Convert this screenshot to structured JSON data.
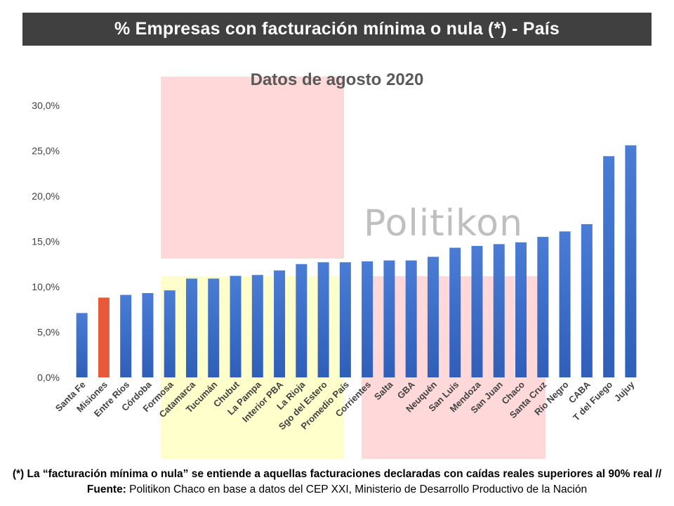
{
  "header": {
    "title": "% Empresas con facturación mínima o nula (*) - País"
  },
  "watermark": "Politikon",
  "footnote": {
    "part1_bold": "(*) La “facturación mínima o nula” se entiende a aquellas facturaciones declaradas con caídas reales superiores al 90% real // Fuente:",
    "part2": " Politikon Chaco en base a datos del CEP XXI, Ministerio de Desarrollo Productivo de la Nación"
  },
  "chart_data": {
    "type": "bar",
    "title": "Datos de agosto 2020",
    "xlabel": "",
    "ylabel": "",
    "ylim": [
      0,
      30
    ],
    "yticks": [
      "0,0%",
      "5,0%",
      "10,0%",
      "15,0%",
      "20,0%",
      "25,0%",
      "30,0%"
    ],
    "grid": false,
    "legend": "none",
    "categories": [
      "Santa Fe",
      "Misiones",
      "Entre Ríos",
      "Córdoba",
      "Formosa",
      "Catamarca",
      "Tucumán",
      "Chubut",
      "La Pampa",
      "Interior PBA",
      "La Rioja",
      "Sgo del Estero",
      "Promedio País",
      "Corrientes",
      "Salta",
      "GBA",
      "Neuquén",
      "San Luis",
      "Mendoza",
      "San Juan",
      "Chaco",
      "Santa Cruz",
      "Río Negro",
      "CABA",
      "T del Fuego",
      "Jujuy"
    ],
    "values": [
      7.1,
      8.8,
      9.1,
      9.3,
      9.6,
      10.9,
      10.9,
      11.2,
      11.3,
      11.8,
      12.5,
      12.7,
      12.7,
      12.8,
      12.9,
      12.9,
      13.3,
      14.3,
      14.5,
      14.7,
      14.9,
      15.5,
      16.1,
      16.9,
      24.4,
      25.6
    ],
    "highlight_category": "Misiones",
    "colors": {
      "bar_top": "#4a7cd6",
      "bar_bottom": "#2f5fb8",
      "highlight": "#e8593b",
      "pink": "#ffd9d9",
      "yellow": "#ffffcc",
      "axis_text": "#404040"
    }
  }
}
